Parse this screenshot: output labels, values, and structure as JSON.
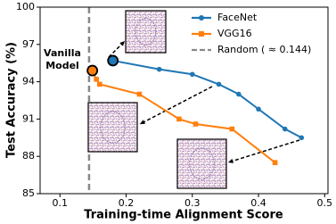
{
  "chart_data": {
    "type": "line",
    "xlabel": "Training-time Alignment Score",
    "ylabel": "Test Accuracy (%)",
    "xlim": [
      0.07,
      0.505
    ],
    "xticks": [
      0.1,
      0.2,
      0.3,
      0.4,
      0.5
    ],
    "ylim": [
      85,
      100
    ],
    "yticks": [
      85,
      88,
      91,
      94,
      97,
      100
    ],
    "series": [
      {
        "name": "FaceNet",
        "color": "#1f77b4",
        "marker": "circle",
        "x": [
          0.18,
          0.25,
          0.3,
          0.34,
          0.37,
          0.4,
          0.44,
          0.465
        ],
        "values": [
          95.7,
          95.0,
          94.6,
          93.8,
          93.0,
          91.8,
          90.2,
          89.5
        ]
      },
      {
        "name": "VGG16",
        "color": "#ff7f0e",
        "marker": "square",
        "x": [
          0.149,
          0.155,
          0.16,
          0.22,
          0.28,
          0.305,
          0.36,
          0.425
        ],
        "values": [
          94.9,
          94.2,
          93.8,
          93.0,
          91.0,
          90.6,
          90.2,
          87.5
        ]
      }
    ],
    "reference_line": {
      "name": "Random ( ≈ 0.144)",
      "x": 0.144,
      "color": "#888888"
    },
    "annotation": [
      "Vanilla",
      "Model"
    ],
    "legend": "upper right"
  }
}
